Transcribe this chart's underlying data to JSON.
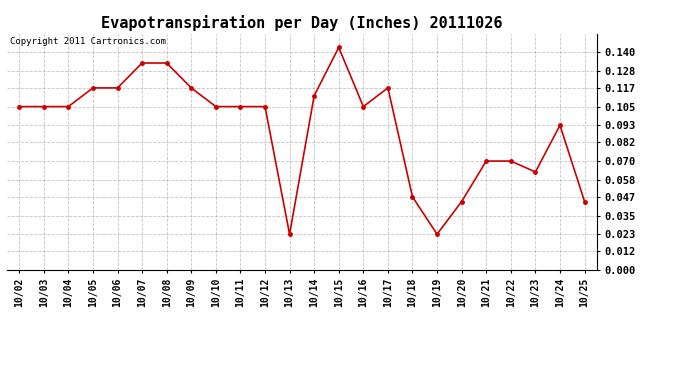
{
  "title": "Evapotranspiration per Day (Inches) 20111026",
  "copyright_text": "Copyright 2011 Cartronics.com",
  "x_labels": [
    "10/02",
    "10/03",
    "10/04",
    "10/05",
    "10/06",
    "10/07",
    "10/08",
    "10/09",
    "10/10",
    "10/11",
    "10/12",
    "10/13",
    "10/14",
    "10/15",
    "10/16",
    "10/17",
    "10/18",
    "10/19",
    "10/20",
    "10/21",
    "10/22",
    "10/23",
    "10/24",
    "10/25"
  ],
  "y_values": [
    0.105,
    0.105,
    0.105,
    0.117,
    0.117,
    0.133,
    0.133,
    0.117,
    0.105,
    0.105,
    0.105,
    0.023,
    0.112,
    0.143,
    0.105,
    0.117,
    0.047,
    0.023,
    0.044,
    0.07,
    0.07,
    0.063,
    0.093,
    0.044
  ],
  "line_color": "#cc0000",
  "marker": "o",
  "marker_size": 2.5,
  "line_width": 1.2,
  "ylim": [
    0.0,
    0.1518
  ],
  "yticks": [
    0.0,
    0.012,
    0.023,
    0.035,
    0.047,
    0.058,
    0.07,
    0.082,
    0.093,
    0.105,
    0.117,
    0.128,
    0.14
  ],
  "background_color": "#ffffff",
  "grid_color": "#aaaaaa",
  "title_fontsize": 11,
  "tick_fontsize": 7,
  "copyright_fontsize": 6.5
}
